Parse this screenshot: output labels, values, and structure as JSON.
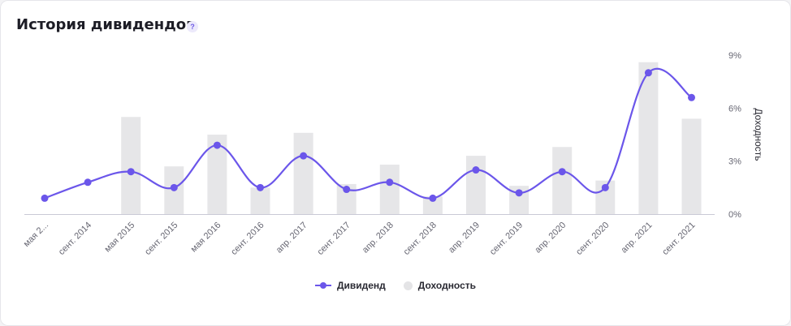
{
  "header": {
    "title": "История дивидендов",
    "help_icon": "?"
  },
  "colors": {
    "dividend": "#6b56ea",
    "yield_bar": "#e6e6e8",
    "axis": "#c9c9d6",
    "text": "#2a2a33",
    "tick": "#666672"
  },
  "chart_data": {
    "type": "bar",
    "categories": [
      "мая 2...",
      "сент. 2014",
      "мая 2015",
      "сент. 2015",
      "мая 2016",
      "сент. 2016",
      "апр. 2017",
      "сент. 2017",
      "апр. 2018",
      "сент. 2018",
      "апр. 2019",
      "сент. 2019",
      "апр. 2020",
      "сент. 2020",
      "апр. 2021",
      "сент. 2021"
    ],
    "series": [
      {
        "name": "Дивиденд",
        "kind": "line",
        "values": [
          0.9,
          1.8,
          2.4,
          1.5,
          3.9,
          1.5,
          3.3,
          1.4,
          1.8,
          0.9,
          2.5,
          1.2,
          2.4,
          1.5,
          8.0,
          6.6
        ]
      },
      {
        "name": "Доходность",
        "kind": "bar",
        "axis": "right",
        "unit": "%",
        "values": [
          0,
          0,
          5.5,
          2.7,
          4.5,
          1.5,
          4.6,
          1.7,
          2.8,
          1.0,
          3.3,
          1.6,
          3.8,
          1.9,
          8.6,
          5.4
        ]
      }
    ],
    "y2label": "Доходность",
    "y2lim": [
      0,
      9
    ],
    "y2ticks": [
      "0%",
      "3%",
      "6%",
      "9%"
    ],
    "grid": false,
    "legend": "bottom-center"
  }
}
